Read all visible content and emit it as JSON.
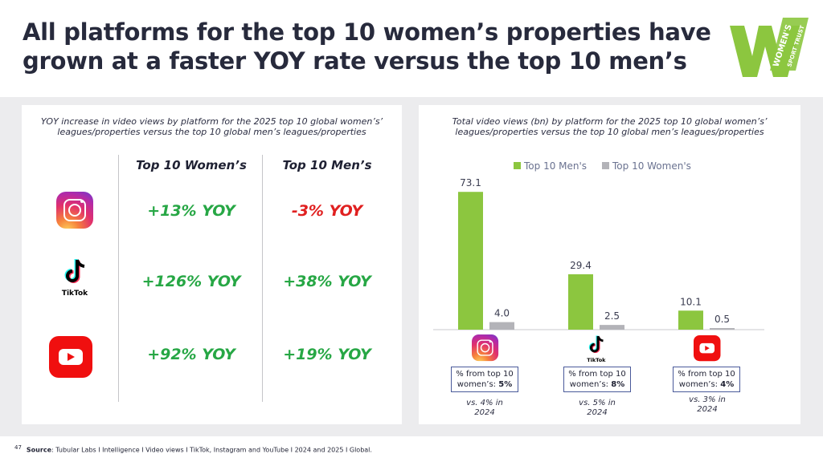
{
  "header": {
    "title_line1": "All platforms for the top 10 women’s properties have",
    "title_line2": "grown at a faster YOY rate versus the top 10 men’s",
    "logo_text_top": "WOMEN'S",
    "logo_text_bottom": "SPORT TRUST",
    "brand_color": "#8cc63f"
  },
  "left_panel": {
    "subtitle_line1": "YOY increase in video views by platform for the 2025 top 10 global women’s’",
    "subtitle_line2": "leagues/properties versus the top 10 global men’s leagues/properties",
    "col_women": "Top 10 Women’s",
    "col_men": "Top 10 Men’s",
    "rows": [
      {
        "platform_icon": "instagram-icon",
        "women": "+13% YOY",
        "men": "-3% YOY",
        "men_color": "#e02020"
      },
      {
        "platform_icon": "tiktok-icon",
        "platform_label": "TikTok",
        "women": "+126% YOY",
        "men": "+38% YOY",
        "men_color": "#27a745"
      },
      {
        "platform_icon": "youtube-icon",
        "women": "+92% YOY",
        "men": "+19% YOY",
        "men_color": "#27a745"
      }
    ],
    "positive_color": "#27a745",
    "negative_color": "#e02020"
  },
  "right_panel": {
    "subtitle_line1": "Total video views (bn) by platform for the 2025 top 10 global women’s’",
    "subtitle_line2": "leagues/properties versus the top 10 global men’s leagues/properties",
    "notes": [
      {
        "line1": "% from top 10",
        "line2_prefix": "women’s: ",
        "line2_value": "5%",
        "vs_line1": "vs. 4% in",
        "vs_line2": "2024"
      },
      {
        "line1": "% from top 10",
        "line2_prefix": "women’s: ",
        "line2_value": "8%",
        "vs_line1": "vs. 5% in",
        "vs_line2": "2024"
      },
      {
        "line1": "% from top 10",
        "line2_prefix": "women’s: ",
        "line2_value": "4%",
        "vs_line1": "vs. 3% in",
        "vs_line2": "2024"
      }
    ],
    "tiktok_label": "TikTok"
  },
  "chart_data": {
    "type": "bar",
    "categories": [
      "Instagram",
      "TikTok",
      "YouTube"
    ],
    "category_icons": [
      "instagram-icon",
      "tiktok-icon",
      "youtube-icon"
    ],
    "series": [
      {
        "name": "Top 10 Men's",
        "values": [
          73.1,
          29.4,
          10.1
        ],
        "labels": [
          "73.1",
          "29.4",
          "10.1"
        ],
        "color": "#8cc63f"
      },
      {
        "name": "Top 10 Women's",
        "values": [
          4.0,
          2.5,
          0.5
        ],
        "labels": [
          "4.0",
          "2.5",
          "0.5"
        ],
        "color": "#b3b3b8"
      }
    ],
    "ylim": [
      0,
      80
    ],
    "grid": false,
    "legend_position": "top-right"
  },
  "footer": {
    "page_number": "47",
    "source_label": "Source",
    "source_text": ": Tubular Labs I Intelligence I Video views I TikTok, Instagram and YouTube I 2024 and 2025 I Global."
  }
}
